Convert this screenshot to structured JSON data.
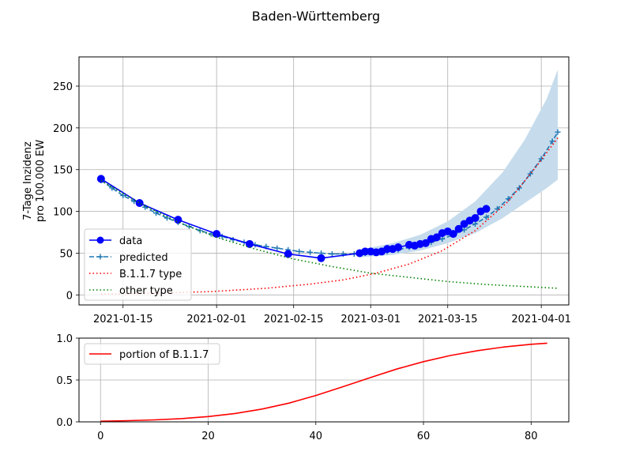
{
  "figure": {
    "title": "Baden-Württemberg"
  },
  "chart_data": [
    {
      "type": "line",
      "ylabel_line1": "7-Tage Inzidenz",
      "ylabel_line2": "pro 100.000 EW",
      "xaxis": "date",
      "xlim": [
        "2021-01-07",
        "2021-04-06"
      ],
      "ylim": [
        -12,
        285
      ],
      "grid": true,
      "legend": "lower-left",
      "xticks": [
        {
          "date": "2021-01-15",
          "label": "2021-01-15"
        },
        {
          "date": "2021-02-01",
          "label": "2021-02-01"
        },
        {
          "date": "2021-02-15",
          "label": "2021-02-15"
        },
        {
          "date": "2021-03-01",
          "label": "2021-03-01"
        },
        {
          "date": "2021-03-15",
          "label": "2021-03-15"
        },
        {
          "date": "2021-04-01",
          "label": "2021-04-01"
        }
      ],
      "yticks": [
        0,
        50,
        100,
        150,
        200,
        250
      ],
      "confidence_band": {
        "color": "#c6dcec",
        "upper": [
          [
            "2021-02-27",
            54
          ],
          [
            "2021-03-05",
            62
          ],
          [
            "2021-03-10",
            72
          ],
          [
            "2021-03-15",
            88
          ],
          [
            "2021-03-20",
            112
          ],
          [
            "2021-03-25",
            147
          ],
          [
            "2021-03-29",
            186
          ],
          [
            "2021-04-02",
            235
          ],
          [
            "2021-04-04",
            270
          ]
        ],
        "lower": [
          [
            "2021-02-27",
            45
          ],
          [
            "2021-03-05",
            48
          ],
          [
            "2021-03-10",
            53
          ],
          [
            "2021-03-15",
            62
          ],
          [
            "2021-03-20",
            74
          ],
          [
            "2021-03-25",
            92
          ],
          [
            "2021-03-29",
            110
          ],
          [
            "2021-04-02",
            128
          ],
          [
            "2021-04-04",
            138
          ]
        ]
      },
      "series": [
        {
          "name": "data",
          "color": "#0000ff",
          "style": "solid-circle",
          "points": [
            [
              "2021-01-11",
              139
            ],
            [
              "2021-01-18",
              110
            ],
            [
              "2021-01-25",
              90
            ],
            [
              "2021-02-01",
              73
            ],
            [
              "2021-02-07",
              61
            ],
            [
              "2021-02-14",
              49
            ],
            [
              "2021-02-20",
              44
            ],
            [
              "2021-02-27",
              50
            ],
            [
              "2021-02-28",
              52
            ],
            [
              "2021-03-01",
              52
            ],
            [
              "2021-03-02",
              51
            ],
            [
              "2021-03-03",
              52
            ],
            [
              "2021-03-04",
              55
            ],
            [
              "2021-03-05",
              55
            ],
            [
              "2021-03-06",
              57
            ],
            [
              "2021-03-08",
              60
            ],
            [
              "2021-03-09",
              59
            ],
            [
              "2021-03-10",
              61
            ],
            [
              "2021-03-11",
              62
            ],
            [
              "2021-03-12",
              67
            ],
            [
              "2021-03-13",
              69
            ],
            [
              "2021-03-14",
              74
            ],
            [
              "2021-03-15",
              76
            ],
            [
              "2021-03-16",
              73
            ],
            [
              "2021-03-17",
              79
            ],
            [
              "2021-03-18",
              85
            ],
            [
              "2021-03-19",
              89
            ],
            [
              "2021-03-20",
              92
            ],
            [
              "2021-03-21",
              100
            ],
            [
              "2021-03-22",
              103
            ]
          ]
        },
        {
          "name": "predicted",
          "color": "#1f77b4",
          "style": "dashed-plus",
          "points": [
            [
              "2021-01-11",
              137
            ],
            [
              "2021-01-13",
              128
            ],
            [
              "2021-01-15",
              119
            ],
            [
              "2021-01-17",
              112
            ],
            [
              "2021-01-19",
              105
            ],
            [
              "2021-01-21",
              98
            ],
            [
              "2021-01-23",
              92
            ],
            [
              "2021-01-25",
              87
            ],
            [
              "2021-01-27",
              82
            ],
            [
              "2021-01-29",
              77
            ],
            [
              "2021-01-31",
              73
            ],
            [
              "2021-02-02",
              70
            ],
            [
              "2021-02-04",
              66
            ],
            [
              "2021-02-06",
              63
            ],
            [
              "2021-02-08",
              60
            ],
            [
              "2021-02-10",
              58
            ],
            [
              "2021-02-12",
              56
            ],
            [
              "2021-02-14",
              54
            ],
            [
              "2021-02-16",
              52
            ],
            [
              "2021-02-18",
              51
            ],
            [
              "2021-02-20",
              50
            ],
            [
              "2021-02-22",
              49
            ],
            [
              "2021-02-24",
              49
            ],
            [
              "2021-02-26",
              49
            ],
            [
              "2021-02-28",
              50
            ],
            [
              "2021-03-02",
              51
            ],
            [
              "2021-03-04",
              52
            ],
            [
              "2021-03-06",
              54
            ],
            [
              "2021-03-08",
              57
            ],
            [
              "2021-03-10",
              60
            ],
            [
              "2021-03-12",
              63
            ],
            [
              "2021-03-14",
              67
            ],
            [
              "2021-03-16",
              72
            ],
            [
              "2021-03-18",
              78
            ],
            [
              "2021-03-20",
              85
            ],
            [
              "2021-03-22",
              93
            ],
            [
              "2021-03-24",
              103
            ],
            [
              "2021-03-26",
              115
            ],
            [
              "2021-03-28",
              128
            ],
            [
              "2021-03-30",
              145
            ],
            [
              "2021-04-01",
              163
            ],
            [
              "2021-04-03",
              184
            ],
            [
              "2021-04-04",
              195
            ]
          ]
        },
        {
          "name": "B.1.1.7 type",
          "color": "#ff0000",
          "style": "dotted",
          "points": [
            [
              "2021-01-11",
              1
            ],
            [
              "2021-01-21",
              2
            ],
            [
              "2021-01-31",
              4
            ],
            [
              "2021-02-10",
              8
            ],
            [
              "2021-02-18",
              13
            ],
            [
              "2021-02-24",
              18
            ],
            [
              "2021-03-02",
              26
            ],
            [
              "2021-03-08",
              37
            ],
            [
              "2021-03-14",
              53
            ],
            [
              "2021-03-20",
              77
            ],
            [
              "2021-03-26",
              112
            ],
            [
              "2021-03-31",
              153
            ],
            [
              "2021-04-04",
              188
            ]
          ]
        },
        {
          "name": "other type",
          "color": "#008000",
          "style": "dotted",
          "points": [
            [
              "2021-01-11",
              137
            ],
            [
              "2021-01-18",
              110
            ],
            [
              "2021-01-25",
              87
            ],
            [
              "2021-02-01",
              69
            ],
            [
              "2021-02-08",
              55
            ],
            [
              "2021-02-15",
              43
            ],
            [
              "2021-02-22",
              34
            ],
            [
              "2021-03-01",
              26
            ],
            [
              "2021-03-08",
              21
            ],
            [
              "2021-03-15",
              16
            ],
            [
              "2021-03-22",
              12.5
            ],
            [
              "2021-03-29",
              10
            ],
            [
              "2021-04-04",
              8
            ]
          ]
        }
      ]
    },
    {
      "type": "line",
      "xlim": [
        -4,
        87
      ],
      "ylim": [
        0,
        1
      ],
      "grid": true,
      "legend": "upper-left",
      "xticks": [
        0,
        20,
        40,
        60,
        80
      ],
      "yticks": [
        {
          "value": 0,
          "label": "0.0"
        },
        {
          "value": 0.5,
          "label": "0.5"
        },
        {
          "value": 1,
          "label": "1.0"
        }
      ],
      "series": [
        {
          "name": "portion of B.1.1.7",
          "color": "#ff0000",
          "style": "solid",
          "x": [
            0,
            5,
            10,
            15,
            20,
            25,
            30,
            35,
            40,
            45,
            50,
            55,
            60,
            65,
            70,
            75,
            80,
            83
          ],
          "y": [
            0.008,
            0.014,
            0.024,
            0.039,
            0.063,
            0.1,
            0.153,
            0.224,
            0.315,
            0.419,
            0.526,
            0.63,
            0.719,
            0.792,
            0.85,
            0.894,
            0.926,
            0.94
          ]
        }
      ]
    }
  ]
}
